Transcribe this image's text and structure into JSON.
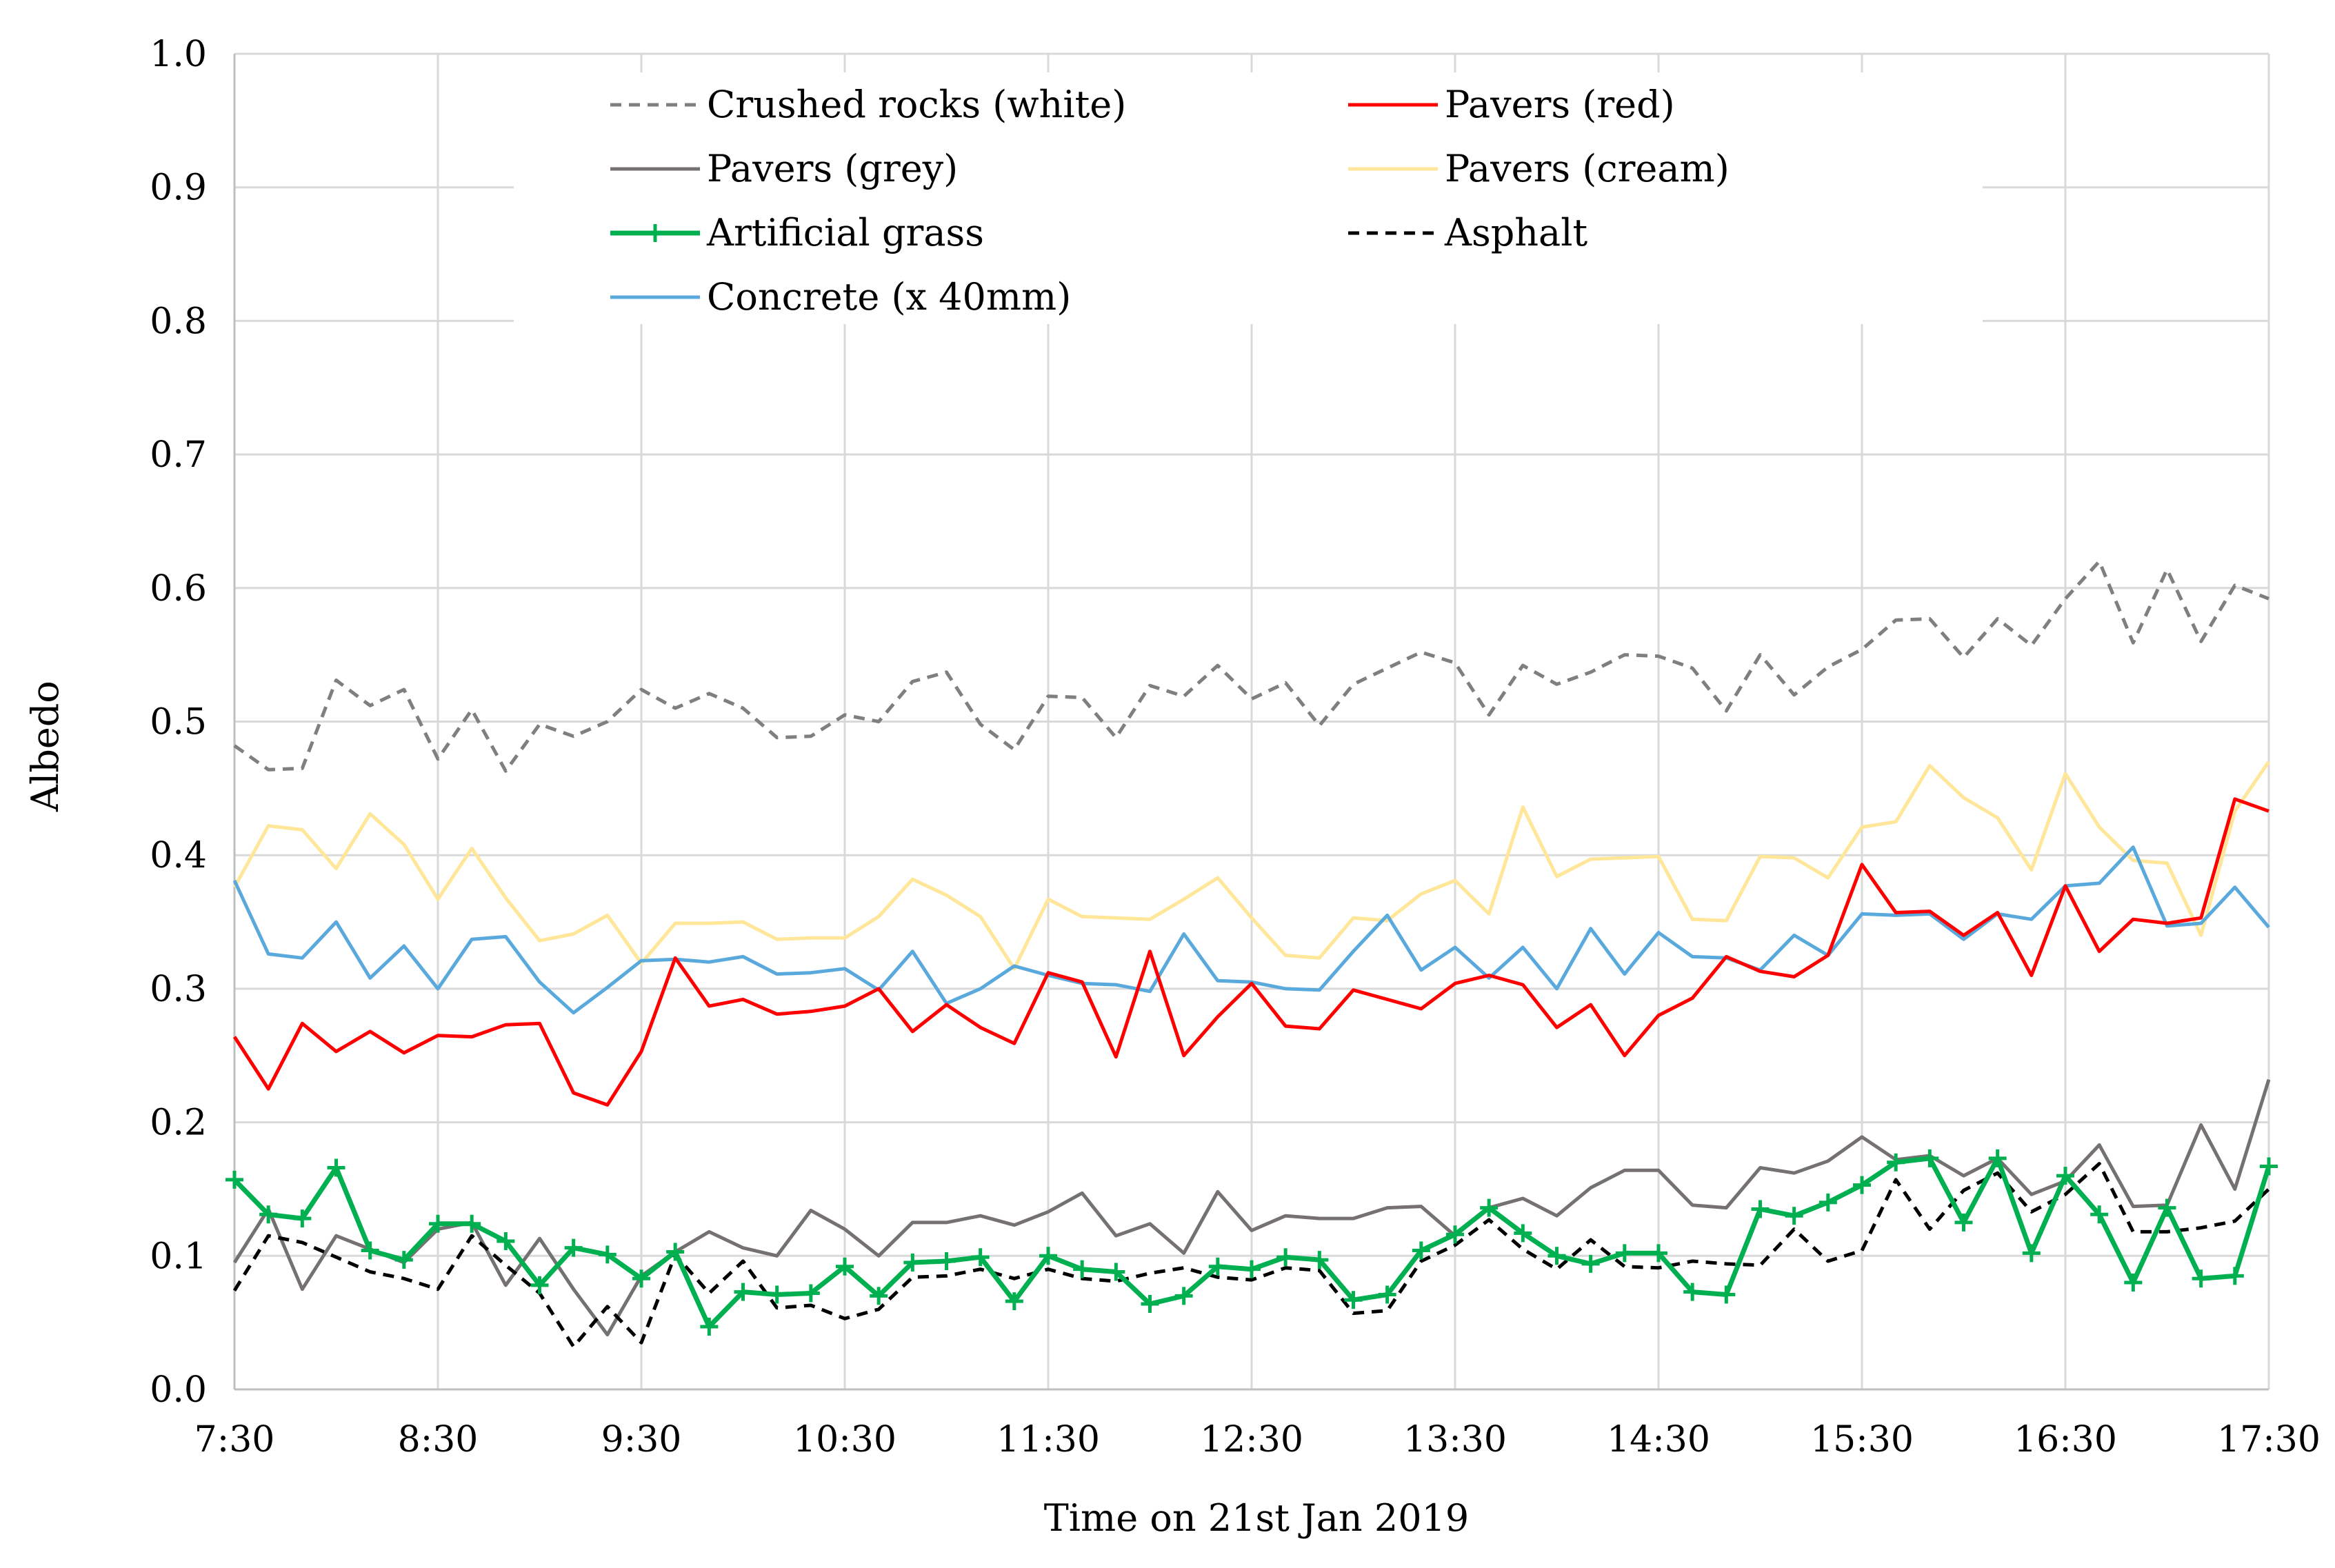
{
  "chart_data": {
    "type": "line",
    "title": "",
    "xlabel": "Time on 21st Jan 2019",
    "ylabel": "Albedo",
    "ylim": [
      0,
      1
    ],
    "yticks": [
      0.0,
      0.1,
      0.2,
      0.3,
      0.4,
      0.5,
      0.6,
      0.7,
      0.8,
      0.9,
      1.0
    ],
    "ytick_labels": [
      "0.0",
      "0.1",
      "0.2",
      "0.3",
      "0.4",
      "0.5",
      "0.6",
      "0.7",
      "0.8",
      "0.9",
      "1.0"
    ],
    "x_start_minutes": 450,
    "x_end_minutes": 1050,
    "x_step_minutes": 10,
    "xtick_labels": [
      "7:30",
      "8:30",
      "9:30",
      "10:30",
      "11:30",
      "12:30",
      "13:30",
      "14:30",
      "15:30",
      "16:30",
      "17:30"
    ],
    "grid": true,
    "legend_position": "top",
    "series": [
      {
        "name": "Crushed rocks (white)",
        "color": "#7f7f7f",
        "style": "dashed",
        "values": [
          0.482,
          0.464,
          0.465,
          0.531,
          0.512,
          0.524,
          0.472,
          0.509,
          0.463,
          0.498,
          0.489,
          0.5,
          0.524,
          0.51,
          0.521,
          0.51,
          0.488,
          0.489,
          0.505,
          0.5,
          0.53,
          0.537,
          0.498,
          0.479,
          0.519,
          0.518,
          0.488,
          0.527,
          0.519,
          0.542,
          0.517,
          0.529,
          0.497,
          0.528,
          0.54,
          0.552,
          0.544,
          0.505,
          0.542,
          0.528,
          0.537,
          0.55,
          0.549,
          0.54,
          0.508,
          0.55,
          0.52,
          0.541,
          0.554,
          0.576,
          0.577,
          0.548,
          0.577,
          0.557,
          0.592,
          0.62,
          0.559,
          0.614,
          0.56,
          0.602,
          0.592
        ]
      },
      {
        "name": "Pavers (red)",
        "color": "#ff0000",
        "style": "solid",
        "values": [
          0.264,
          0.225,
          0.274,
          0.253,
          0.268,
          0.252,
          0.265,
          0.264,
          0.273,
          0.274,
          0.222,
          0.213,
          0.253,
          0.323,
          0.287,
          0.292,
          0.281,
          0.283,
          0.287,
          0.3,
          0.268,
          0.288,
          0.271,
          0.259,
          0.312,
          0.305,
          0.249,
          0.328,
          0.25,
          0.279,
          0.304,
          0.272,
          0.27,
          0.299,
          0.292,
          0.285,
          0.304,
          0.31,
          0.303,
          0.271,
          0.288,
          0.25,
          0.28,
          0.293,
          0.324,
          0.313,
          0.309,
          0.325,
          0.393,
          0.357,
          0.358,
          0.34,
          0.357,
          0.31,
          0.377,
          0.328,
          0.352,
          0.349,
          0.353,
          0.442,
          0.433
        ]
      },
      {
        "name": "Pavers (grey)",
        "color": "#767171",
        "style": "solid",
        "values": [
          0.095,
          0.135,
          0.075,
          0.115,
          0.105,
          0.095,
          0.12,
          0.125,
          0.078,
          0.113,
          0.075,
          0.041,
          0.085,
          0.103,
          0.118,
          0.106,
          0.1,
          0.134,
          0.12,
          0.1,
          0.125,
          0.125,
          0.13,
          0.123,
          0.133,
          0.147,
          0.115,
          0.124,
          0.102,
          0.148,
          0.119,
          0.13,
          0.128,
          0.128,
          0.136,
          0.137,
          0.115,
          0.136,
          0.143,
          0.13,
          0.151,
          0.164,
          0.164,
          0.138,
          0.136,
          0.166,
          0.162,
          0.171,
          0.189,
          0.172,
          0.175,
          0.16,
          0.173,
          0.146,
          0.156,
          0.183,
          0.137,
          0.138,
          0.198,
          0.15,
          0.232
        ]
      },
      {
        "name": "Pavers (cream)",
        "color": "#ffe699",
        "style": "solid",
        "values": [
          0.376,
          0.422,
          0.419,
          0.39,
          0.431,
          0.408,
          0.367,
          0.405,
          0.368,
          0.336,
          0.341,
          0.355,
          0.319,
          0.349,
          0.349,
          0.35,
          0.337,
          0.338,
          0.338,
          0.354,
          0.382,
          0.37,
          0.354,
          0.315,
          0.367,
          0.354,
          0.353,
          0.352,
          0.367,
          0.383,
          0.353,
          0.325,
          0.323,
          0.353,
          0.351,
          0.371,
          0.381,
          0.356,
          0.436,
          0.384,
          0.397,
          0.398,
          0.399,
          0.352,
          0.351,
          0.399,
          0.398,
          0.383,
          0.421,
          0.425,
          0.467,
          0.443,
          0.428,
          0.389,
          0.461,
          0.421,
          0.396,
          0.394,
          0.34,
          0.433,
          0.47
        ]
      },
      {
        "name": "Artificial grass",
        "color": "#00b050",
        "style": "solid-plus",
        "values": [
          0.157,
          0.131,
          0.128,
          0.166,
          0.104,
          0.097,
          0.124,
          0.124,
          0.111,
          0.078,
          0.106,
          0.101,
          0.083,
          0.103,
          0.047,
          0.073,
          0.071,
          0.072,
          0.092,
          0.07,
          0.095,
          0.096,
          0.099,
          0.066,
          0.1,
          0.09,
          0.088,
          0.064,
          0.07,
          0.092,
          0.09,
          0.099,
          0.097,
          0.067,
          0.071,
          0.104,
          0.116,
          0.136,
          0.117,
          0.1,
          0.094,
          0.102,
          0.102,
          0.073,
          0.071,
          0.135,
          0.13,
          0.14,
          0.153,
          0.17,
          0.173,
          0.125,
          0.173,
          0.102,
          0.16,
          0.131,
          0.08,
          0.136,
          0.083,
          0.085,
          0.167
        ]
      },
      {
        "name": "Asphalt",
        "color": "#000000",
        "style": "dashed",
        "values": [
          0.074,
          0.115,
          0.11,
          0.099,
          0.088,
          0.083,
          0.075,
          0.115,
          0.093,
          0.072,
          0.032,
          0.062,
          0.035,
          0.101,
          0.072,
          0.096,
          0.061,
          0.063,
          0.053,
          0.06,
          0.084,
          0.085,
          0.09,
          0.083,
          0.09,
          0.083,
          0.081,
          0.087,
          0.091,
          0.084,
          0.082,
          0.091,
          0.089,
          0.057,
          0.059,
          0.096,
          0.108,
          0.127,
          0.105,
          0.09,
          0.112,
          0.092,
          0.091,
          0.096,
          0.094,
          0.093,
          0.12,
          0.096,
          0.104,
          0.157,
          0.12,
          0.149,
          0.162,
          0.133,
          0.146,
          0.169,
          0.118,
          0.118,
          0.121,
          0.126,
          0.15
        ]
      },
      {
        "name": "Concrete (x 40mm)",
        "color": "#5aa9dd",
        "style": "solid",
        "values": [
          0.381,
          0.326,
          0.323,
          0.35,
          0.308,
          0.332,
          0.3,
          0.337,
          0.339,
          0.305,
          0.282,
          0.301,
          0.321,
          0.322,
          0.32,
          0.324,
          0.311,
          0.312,
          0.315,
          0.299,
          0.328,
          0.289,
          0.3,
          0.317,
          0.31,
          0.304,
          0.303,
          0.298,
          0.341,
          0.306,
          0.305,
          0.3,
          0.299,
          0.328,
          0.355,
          0.314,
          0.331,
          0.308,
          0.331,
          0.3,
          0.345,
          0.311,
          0.342,
          0.324,
          0.323,
          0.314,
          0.34,
          0.325,
          0.356,
          0.355,
          0.356,
          0.337,
          0.356,
          0.352,
          0.377,
          0.379,
          0.406,
          0.347,
          0.349,
          0.376,
          0.346
        ]
      }
    ]
  }
}
